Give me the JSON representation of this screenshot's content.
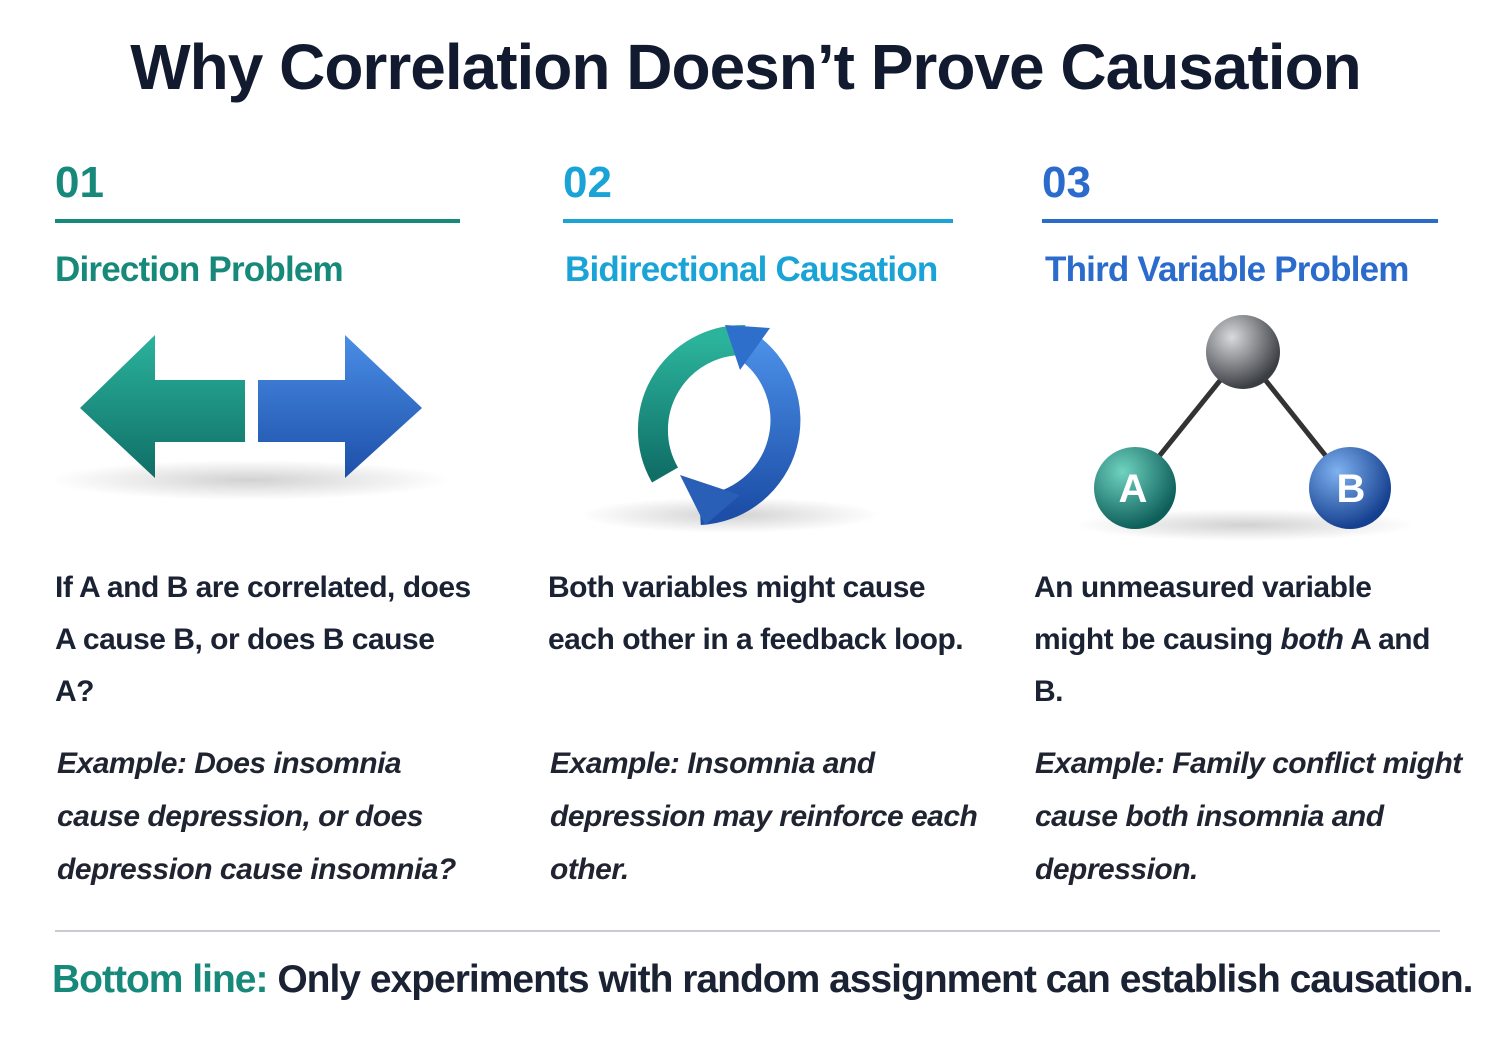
{
  "title": "Why Correlation Doesn’t Prove Causation",
  "columns": [
    {
      "number": "01",
      "heading": "Direction Problem",
      "body": [
        "If A and B are correlated, does A cause B, or does B cause A?"
      ],
      "example": "Example: Does insomnia cause depression, or does depression cause insomnia?"
    },
    {
      "number": "02",
      "heading": "Bidirectional Causation",
      "body": [
        "Both variables might cause each other in a feedback loop."
      ],
      "example": "Example: Insomnia and depression may reinforce each other."
    },
    {
      "number": "03",
      "heading": "Third Variable Problem",
      "body": [
        "An unmeasured variable might be causing ",
        "both",
        " A and B."
      ],
      "example": "Example: Family conflict might cause both insomnia and depression.",
      "icon_labels": [
        "A",
        "B"
      ]
    }
  ],
  "footer": {
    "label": "Bottom line:",
    "text": "Only experiments with random assignment can establish causation."
  }
}
